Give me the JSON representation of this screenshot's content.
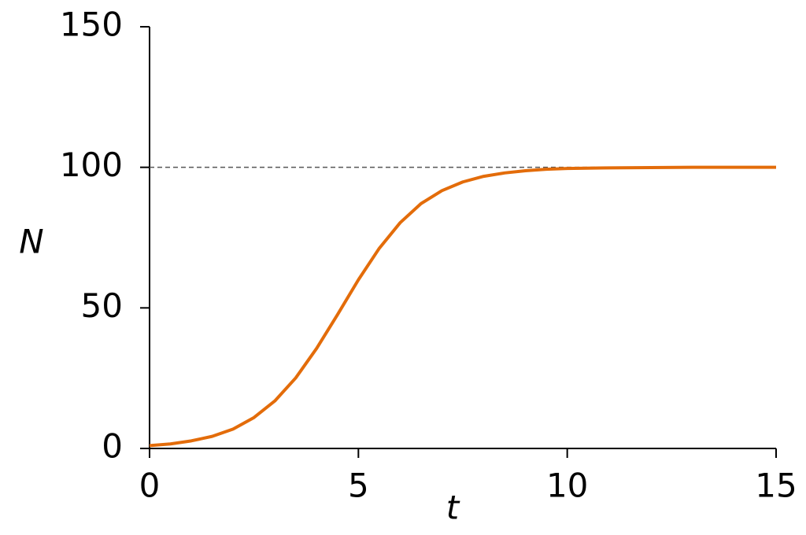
{
  "chart_data": {
    "type": "line",
    "x": [
      0,
      0.5,
      1,
      1.5,
      2,
      2.5,
      3,
      3.5,
      4,
      4.5,
      5,
      5.5,
      6,
      6.5,
      7,
      7.5,
      8,
      8.5,
      9,
      9.5,
      10,
      11,
      12,
      13,
      14,
      15
    ],
    "values": [
      1,
      1.6,
      2.7,
      4.3,
      6.9,
      11,
      16.9,
      25.1,
      35.6,
      47.6,
      60,
      71.2,
      80.3,
      87.1,
      91.7,
      94.8,
      96.8,
      98,
      98.8,
      99.3,
      99.6,
      99.8,
      99.9,
      100,
      100,
      100
    ],
    "color": "#e36c0a",
    "x_label": "t",
    "y_label": "N",
    "xlim": [
      0,
      15
    ],
    "xticks": [
      0,
      5,
      10,
      15
    ],
    "ylim": [
      0,
      150
    ],
    "yticks": [
      0,
      50,
      100,
      150
    ],
    "hline": 100
  }
}
